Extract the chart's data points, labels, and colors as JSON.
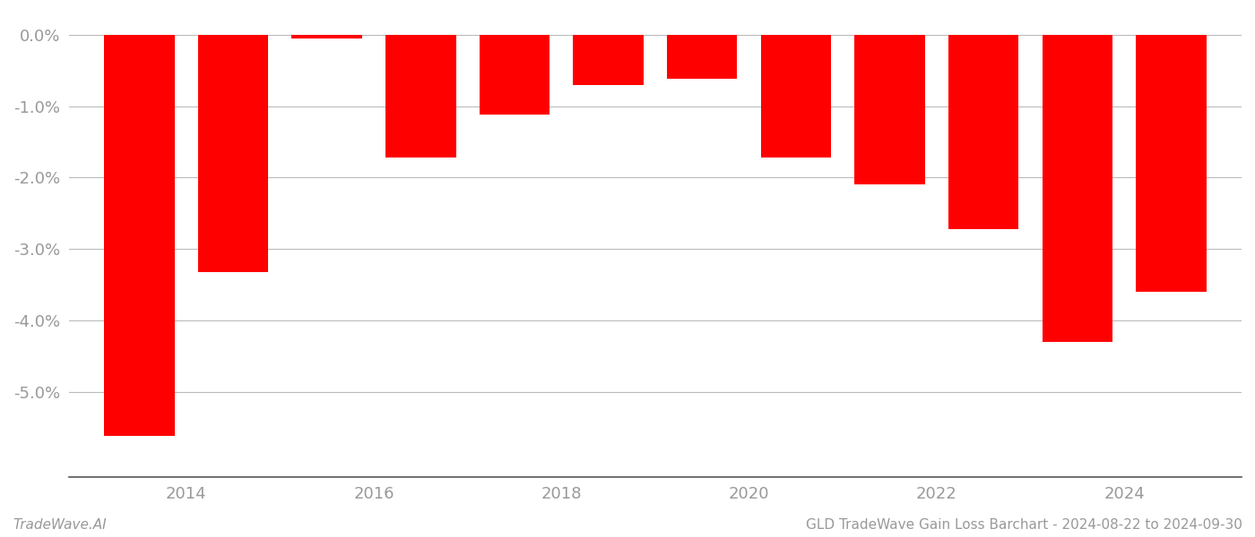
{
  "years": [
    2013,
    2014,
    2015,
    2016,
    2017,
    2018,
    2019,
    2020,
    2021,
    2022,
    2023,
    2024
  ],
  "values": [
    -5.62,
    -3.32,
    -0.05,
    -1.72,
    -1.12,
    -0.7,
    -0.62,
    -1.72,
    -2.1,
    -2.72,
    -4.3,
    -3.6
  ],
  "bar_color": "#ff0000",
  "background_color": "#ffffff",
  "grid_color": "#bbbbbb",
  "ylim": [
    -6.2,
    0.3
  ],
  "ytick_values": [
    0.0,
    -1.0,
    -2.0,
    -3.0,
    -4.0,
    -5.0
  ],
  "xtick_positions": [
    2013.5,
    2015.5,
    2017.5,
    2019.5,
    2021.5,
    2023.5
  ],
  "xtick_labels": [
    "2014",
    "2016",
    "2018",
    "2020",
    "2022",
    "2024"
  ],
  "footnote_left": "TradeWave.AI",
  "footnote_right": "GLD TradeWave Gain Loss Barchart - 2024-08-22 to 2024-09-30",
  "footnote_fontsize": 11,
  "bar_width": 0.75,
  "tick_label_color": "#999999",
  "tick_label_fontsize": 13
}
